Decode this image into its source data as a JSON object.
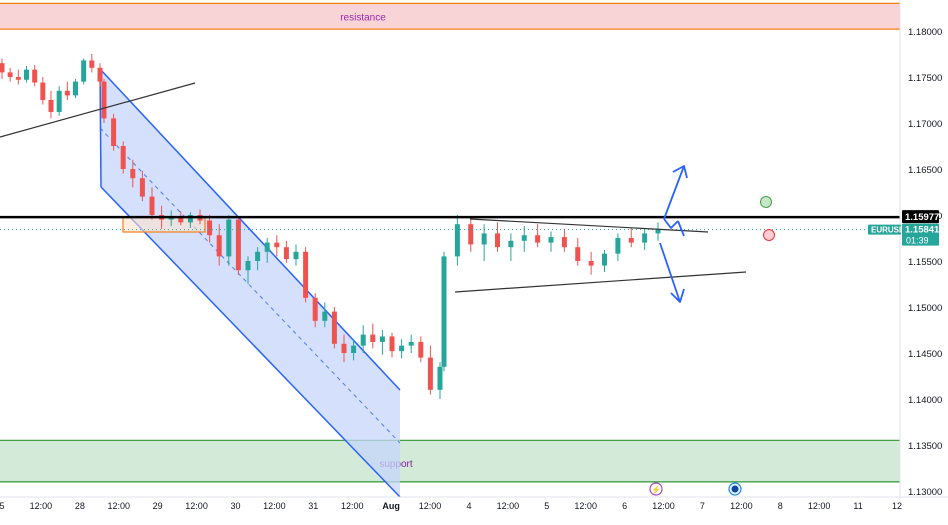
{
  "chart_data": {
    "type": "candlestick",
    "symbol": "EURUSD",
    "price_axis": {
      "min": 1.13,
      "max": 1.183,
      "ticks": [
        "1.18000",
        "1.17500",
        "1.17000",
        "1.16500",
        "1.16000",
        "1.15500",
        "1.15000",
        "1.14500",
        "1.14000",
        "1.13500",
        "1.13000"
      ],
      "tick_values": [
        1.18,
        1.175,
        1.17,
        1.165,
        1.16,
        1.155,
        1.15,
        1.145,
        1.14,
        1.135,
        1.13
      ]
    },
    "time_axis": {
      "labels": [
        "5",
        "12:00",
        "28",
        "12:00",
        "29",
        "12:00",
        "30",
        "12:00",
        "31",
        "12:00",
        "Aug",
        "12:00",
        "4",
        "12:00",
        "5",
        "12:00",
        "6",
        "12:00",
        "7",
        "12:00",
        "8",
        "12:00",
        "11",
        "12"
      ],
      "bold": [
        "Aug"
      ]
    },
    "zones": [
      {
        "name": "resistance",
        "label": "resistance",
        "top": 1.183,
        "bottom": 1.1802,
        "color": "#f9d4d6",
        "border": "#f57f17",
        "label_color": "#9c27b0"
      },
      {
        "name": "support",
        "label": "support",
        "top": 1.1355,
        "bottom": 1.131,
        "color": "#d4ead8",
        "border": "#43a047",
        "label_color": "#7b1fa2"
      }
    ],
    "levels": [
      {
        "name": "key-level",
        "value": 1.15977,
        "label": "1.15977",
        "color": "#000000"
      },
      {
        "name": "last-price",
        "value": 1.15841,
        "label": "1.15841",
        "sublabel": "01:39",
        "color": "#26a69a"
      }
    ],
    "price_badges": {
      "symbol_label": "EURUSD",
      "countdown": "01:39"
    },
    "colors": {
      "up": "#26a69a",
      "down": "#ef5350",
      "channel": "#2962ff",
      "channel_fill": "#c5d5fb",
      "trendline": "#333333",
      "arrow": "#2962ff"
    },
    "candles": [
      [
        1.1765,
        1.177,
        1.1748,
        1.1755
      ],
      [
        1.1755,
        1.176,
        1.1745,
        1.175
      ],
      [
        1.175,
        1.1758,
        1.1742,
        1.1747
      ],
      [
        1.1747,
        1.1762,
        1.1744,
        1.1758
      ],
      [
        1.1758,
        1.1763,
        1.174,
        1.1744
      ],
      [
        1.1744,
        1.175,
        1.172,
        1.1725
      ],
      [
        1.1725,
        1.1735,
        1.1705,
        1.1712
      ],
      [
        1.1712,
        1.174,
        1.1708,
        1.1735
      ],
      [
        1.1735,
        1.1745,
        1.1725,
        1.173
      ],
      [
        1.173,
        1.1748,
        1.1727,
        1.1745
      ],
      [
        1.1745,
        1.177,
        1.1742,
        1.1768
      ],
      [
        1.1768,
        1.1775,
        1.1755,
        1.176
      ],
      [
        1.176,
        1.1765,
        1.174,
        1.1745
      ],
      [
        1.1745,
        1.1748,
        1.17,
        1.1705
      ],
      [
        1.1705,
        1.171,
        1.167,
        1.1675
      ],
      [
        1.1675,
        1.168,
        1.1645,
        1.165
      ],
      [
        1.165,
        1.166,
        1.163,
        1.164
      ],
      [
        1.164,
        1.1648,
        1.1615,
        1.162
      ],
      [
        1.162,
        1.163,
        1.1595,
        1.16
      ],
      [
        1.16,
        1.161,
        1.1585,
        1.1595
      ],
      [
        1.1595,
        1.1605,
        1.1588,
        1.1598
      ],
      [
        1.1598,
        1.1604,
        1.1589,
        1.1592
      ],
      [
        1.1592,
        1.1603,
        1.1586,
        1.16
      ],
      [
        1.16,
        1.1606,
        1.159,
        1.1594
      ],
      [
        1.1594,
        1.16,
        1.157,
        1.1578
      ],
      [
        1.1578,
        1.159,
        1.1545,
        1.1555
      ],
      [
        1.1555,
        1.16,
        1.1545,
        1.1595
      ],
      [
        1.1595,
        1.1598,
        1.1535,
        1.154
      ],
      [
        1.154,
        1.1555,
        1.1525,
        1.155
      ],
      [
        1.155,
        1.1565,
        1.154,
        1.156
      ],
      [
        1.156,
        1.1575,
        1.1548,
        1.157
      ],
      [
        1.157,
        1.1578,
        1.1555,
        1.1565
      ],
      [
        1.1565,
        1.1572,
        1.1548,
        1.1552
      ],
      [
        1.1552,
        1.1568,
        1.1545,
        1.156
      ],
      [
        1.156,
        1.1565,
        1.1505,
        1.151
      ],
      [
        1.151,
        1.1515,
        1.1478,
        1.1485
      ],
      [
        1.1485,
        1.1505,
        1.1478,
        1.1495
      ],
      [
        1.1495,
        1.15,
        1.1455,
        1.146
      ],
      [
        1.146,
        1.147,
        1.144,
        1.145
      ],
      [
        1.145,
        1.1465,
        1.1442,
        1.1458
      ],
      [
        1.1458,
        1.148,
        1.145,
        1.147
      ],
      [
        1.147,
        1.1482,
        1.1455,
        1.1462
      ],
      [
        1.1462,
        1.1475,
        1.1448,
        1.1468
      ],
      [
        1.1468,
        1.1472,
        1.1445,
        1.1452
      ],
      [
        1.1452,
        1.1465,
        1.1444,
        1.1458
      ],
      [
        1.1458,
        1.147,
        1.145,
        1.1462
      ],
      [
        1.1462,
        1.1468,
        1.144,
        1.1445
      ],
      [
        1.1445,
        1.1458,
        1.1405,
        1.141
      ],
      [
        1.141,
        1.144,
        1.14,
        1.1435
      ],
      [
        1.1435,
        1.156,
        1.143,
        1.1555
      ],
      [
        1.1555,
        1.16,
        1.1545,
        1.159
      ],
      [
        1.159,
        1.1598,
        1.156,
        1.1568
      ],
      [
        1.1568,
        1.159,
        1.155,
        1.158
      ],
      [
        1.158,
        1.1592,
        1.156,
        1.1565
      ],
      [
        1.1565,
        1.158,
        1.155,
        1.1572
      ],
      [
        1.1572,
        1.1588,
        1.156,
        1.1578
      ],
      [
        1.1578,
        1.159,
        1.1565,
        1.157
      ],
      [
        1.157,
        1.1582,
        1.156,
        1.1576
      ],
      [
        1.1576,
        1.1585,
        1.156,
        1.1565
      ],
      [
        1.1565,
        1.1575,
        1.1545,
        1.155
      ],
      [
        1.155,
        1.156,
        1.1535,
        1.1545
      ],
      [
        1.1545,
        1.1562,
        1.1538,
        1.1558
      ],
      [
        1.1558,
        1.158,
        1.155,
        1.1575
      ],
      [
        1.1575,
        1.1586,
        1.1565,
        1.157
      ],
      [
        1.157,
        1.1585,
        1.1562,
        1.158
      ],
      [
        1.158,
        1.1592,
        1.1572,
        1.1584
      ]
    ]
  }
}
